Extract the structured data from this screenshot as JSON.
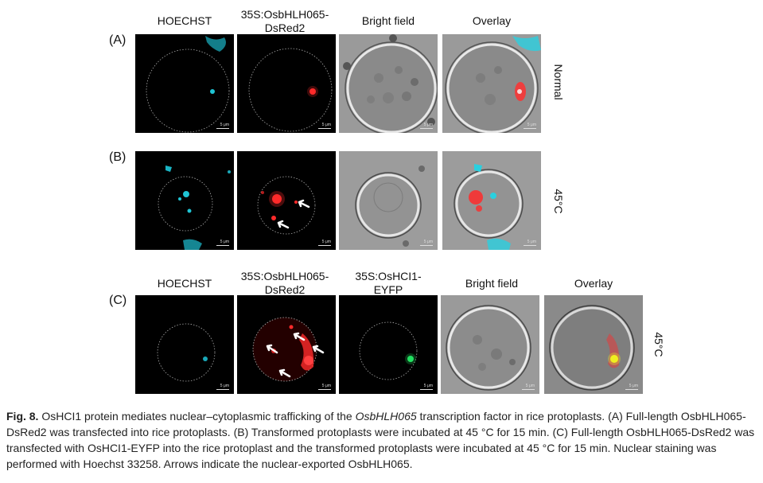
{
  "headers_ab": {
    "hoechst": "HOECHST",
    "dsred": "35S:OsbHLH065-\nDsRed2",
    "bright": "Bright field",
    "overlay": "Overlay"
  },
  "headers_c": {
    "hoechst": "HOECHST",
    "dsred": "35S:OsbHLH065-\nDsRed2",
    "eyfp": "35S:OsHCI1-\nEYFP",
    "bright": "Bright field",
    "overlay": "Overlay"
  },
  "rows": {
    "a": {
      "label": "(A)",
      "condition": "Normal"
    },
    "b": {
      "label": "(B)",
      "condition": "45°C"
    },
    "c": {
      "label": "(C)",
      "condition": "45°C"
    }
  },
  "scale_label": "5 μm",
  "caption": {
    "fig_label": "Fig. 8.",
    "part1": "OsHCI1 protein mediates nuclear–cytoplasmic trafficking of the ",
    "gene": "OsbHLH065",
    "part2": " transcription factor in rice protoplasts. (A) Full-length OsbHLH065-DsRed2 was transfected into rice protoplasts. (B) Transformed protoplasts were incubated at 45 °C for 15 min. (C) Full-length OsbHLH065-DsRed2 was transfected with OsHCI1-EYFP into the rice protoplast and the transformed protoplasts were incubated at 45 °C for 15 min. Nuclear staining was performed with Hoechst 33258. Arrows indicate the nuclear-exported OsbHLH065."
  },
  "colors": {
    "cyan": "#1fd0e0",
    "red": "#ff2a2a",
    "green": "#22e060"
  }
}
